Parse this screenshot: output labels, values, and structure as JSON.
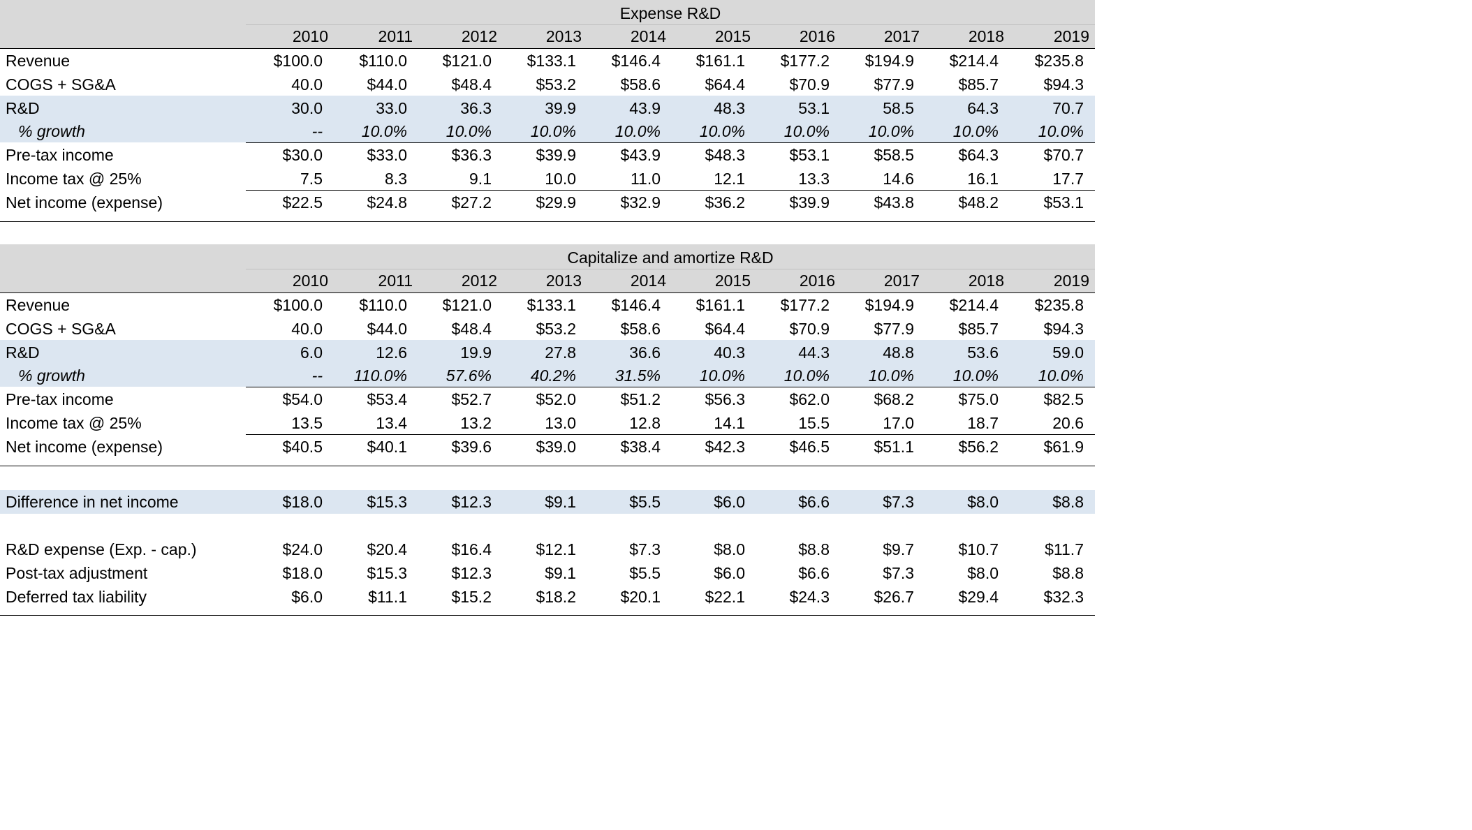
{
  "years": [
    "2010",
    "2011",
    "2012",
    "2013",
    "2014",
    "2015",
    "2016",
    "2017",
    "2018",
    "2019"
  ],
  "colors": {
    "header_band": "#d9d9d9",
    "highlight_band": "#dce6f1",
    "background": "#ffffff"
  },
  "expense": {
    "title": "Expense R&D",
    "rows": [
      {
        "label": "Revenue",
        "values": [
          "$100.0",
          "$110.0",
          "$121.0",
          "$133.1",
          "$146.4",
          "$161.1",
          "$177.2",
          "$194.9",
          "$214.4",
          "$235.8"
        ]
      },
      {
        "label": "COGS + SG&A",
        "values": [
          "40.0",
          "$44.0",
          "$48.4",
          "$53.2",
          "$58.6",
          "$64.4",
          "$70.9",
          "$77.9",
          "$85.7",
          "$94.3"
        ]
      },
      {
        "label": "R&D",
        "values": [
          "30.0",
          "33.0",
          "36.3",
          "39.9",
          "43.9",
          "48.3",
          "53.1",
          "58.5",
          "64.3",
          "70.7"
        ]
      },
      {
        "label": "% growth",
        "values": [
          "--",
          "10.0%",
          "10.0%",
          "10.0%",
          "10.0%",
          "10.0%",
          "10.0%",
          "10.0%",
          "10.0%",
          "10.0%"
        ]
      },
      {
        "label": "Pre-tax income",
        "values": [
          "$30.0",
          "$33.0",
          "$36.3",
          "$39.9",
          "$43.9",
          "$48.3",
          "$53.1",
          "$58.5",
          "$64.3",
          "$70.7"
        ]
      },
      {
        "label": "Income tax @ 25%",
        "values": [
          "7.5",
          "8.3",
          "9.1",
          "10.0",
          "11.0",
          "12.1",
          "13.3",
          "14.6",
          "16.1",
          "17.7"
        ]
      },
      {
        "label": "Net income (expense)",
        "values": [
          "$22.5",
          "$24.8",
          "$27.2",
          "$29.9",
          "$32.9",
          "$36.2",
          "$39.9",
          "$43.8",
          "$48.2",
          "$53.1"
        ]
      }
    ]
  },
  "capitalize": {
    "title": "Capitalize and amortize R&D",
    "rows": [
      {
        "label": "Revenue",
        "values": [
          "$100.0",
          "$110.0",
          "$121.0",
          "$133.1",
          "$146.4",
          "$161.1",
          "$177.2",
          "$194.9",
          "$214.4",
          "$235.8"
        ]
      },
      {
        "label": "COGS + SG&A",
        "values": [
          "40.0",
          "$44.0",
          "$48.4",
          "$53.2",
          "$58.6",
          "$64.4",
          "$70.9",
          "$77.9",
          "$85.7",
          "$94.3"
        ]
      },
      {
        "label": "R&D",
        "values": [
          "6.0",
          "12.6",
          "19.9",
          "27.8",
          "36.6",
          "40.3",
          "44.3",
          "48.8",
          "53.6",
          "59.0"
        ]
      },
      {
        "label": "% growth",
        "values": [
          "--",
          "110.0%",
          "57.6%",
          "40.2%",
          "31.5%",
          "10.0%",
          "10.0%",
          "10.0%",
          "10.0%",
          "10.0%"
        ]
      },
      {
        "label": "Pre-tax income",
        "values": [
          "$54.0",
          "$53.4",
          "$52.7",
          "$52.0",
          "$51.2",
          "$56.3",
          "$62.0",
          "$68.2",
          "$75.0",
          "$82.5"
        ]
      },
      {
        "label": "Income tax @ 25%",
        "values": [
          "13.5",
          "13.4",
          "13.2",
          "13.0",
          "12.8",
          "14.1",
          "15.5",
          "17.0",
          "18.7",
          "20.6"
        ]
      },
      {
        "label": "Net income (expense)",
        "values": [
          "$40.5",
          "$40.1",
          "$39.6",
          "$39.0",
          "$38.4",
          "$42.3",
          "$46.5",
          "$51.1",
          "$56.2",
          "$61.9"
        ]
      }
    ]
  },
  "difference": {
    "label": "Difference in net income",
    "values": [
      "$18.0",
      "$15.3",
      "$12.3",
      "$9.1",
      "$5.5",
      "$6.0",
      "$6.6",
      "$7.3",
      "$8.0",
      "$8.8"
    ]
  },
  "summary": [
    {
      "label": "R&D expense (Exp. - cap.)",
      "values": [
        "$24.0",
        "$20.4",
        "$16.4",
        "$12.1",
        "$7.3",
        "$8.0",
        "$8.8",
        "$9.7",
        "$10.7",
        "$11.7"
      ]
    },
    {
      "label": "Post-tax adjustment",
      "values": [
        "$18.0",
        "$15.3",
        "$12.3",
        "$9.1",
        "$5.5",
        "$6.0",
        "$6.6",
        "$7.3",
        "$8.0",
        "$8.8"
      ]
    },
    {
      "label": "Deferred tax liability",
      "values": [
        "$6.0",
        "$11.1",
        "$15.2",
        "$18.2",
        "$20.1",
        "$22.1",
        "$24.3",
        "$26.7",
        "$29.4",
        "$32.3"
      ]
    }
  ]
}
